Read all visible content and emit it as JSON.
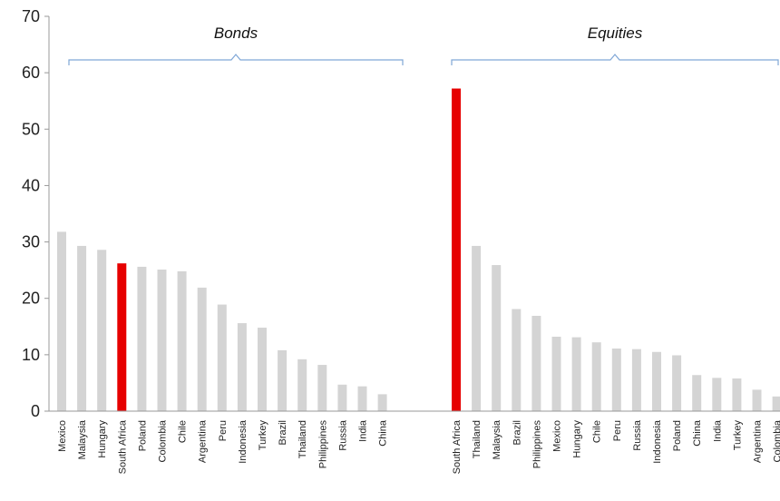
{
  "chart_data": {
    "type": "bar",
    "title": "",
    "xlabel": "",
    "ylabel": "",
    "ylim": [
      0,
      70
    ],
    "yticks": [
      0,
      10,
      20,
      30,
      40,
      50,
      60,
      70
    ],
    "grid": false,
    "colors": {
      "default": "#d4d4d4",
      "highlight": "#e60000",
      "bracket": "#7fa6d6"
    },
    "groups": [
      {
        "name": "Bonds",
        "categories": [
          "Mexico",
          "Malaysia",
          "Hungary",
          "South Africa",
          "Poland",
          "Colombia",
          "Chile",
          "Argentina",
          "Peru",
          "Indonesia",
          "Turkey",
          "Brazil",
          "Thailand",
          "Philippines",
          "Russia",
          "India",
          "China"
        ],
        "values": [
          31.8,
          29.3,
          28.6,
          26.2,
          25.6,
          25.1,
          24.8,
          21.9,
          18.9,
          15.6,
          14.8,
          10.8,
          9.2,
          8.2,
          4.7,
          4.4,
          3.0
        ],
        "highlight": "South Africa"
      },
      {
        "name": "Equities",
        "categories": [
          "South Africa",
          "Thailand",
          "Malaysia",
          "Brazil",
          "Philippines",
          "Mexico",
          "Hungary",
          "Chile",
          "Peru",
          "Russia",
          "Indonesia",
          "Poland",
          "China",
          "India",
          "Turkey",
          "Argentina",
          "Colombia"
        ],
        "values": [
          57.2,
          29.3,
          25.9,
          18.1,
          16.9,
          13.2,
          13.1,
          12.2,
          11.1,
          11.0,
          10.5,
          9.9,
          6.4,
          5.9,
          5.8,
          3.8,
          2.6
        ],
        "highlight": "South Africa"
      }
    ]
  }
}
